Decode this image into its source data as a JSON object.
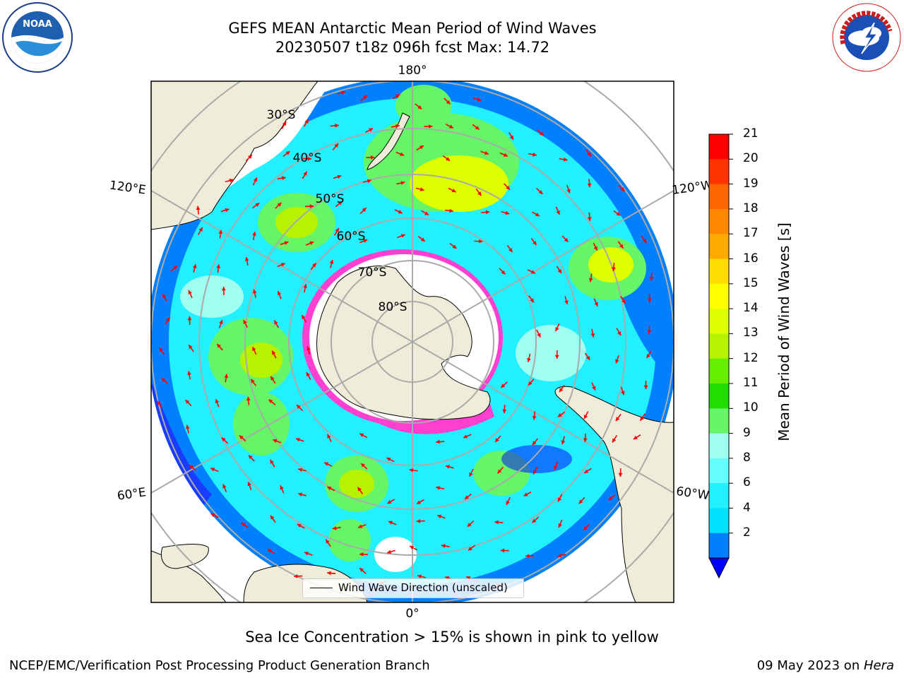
{
  "header": {
    "title_line1": "GEFS MEAN Antarctic Mean Period of Wind Waves",
    "title_line2": "20230507 t18z 096h fcst   Max: 14.72"
  },
  "logos": {
    "left": {
      "icon": "noaa-logo-icon",
      "text": "NOAA"
    },
    "right": {
      "icon": "nws-logo-icon",
      "text": "NATIONAL WEATHER SERVICE"
    }
  },
  "map": {
    "projection": "south-polar-stereographic",
    "longitude_labels": [
      "180°",
      "120°E",
      "120°W",
      "60°E",
      "60°W",
      "0°"
    ],
    "latitude_labels": [
      "30°S",
      "40°S",
      "50°S",
      "60°S",
      "70°S",
      "80°S"
    ],
    "colors": {
      "land": "#efedd9",
      "ocean_no_data": "#ffffff",
      "ice_edge": "#ff3fd0",
      "arrow": "#ff0000",
      "grid": "#aaaaaa"
    }
  },
  "colorbar": {
    "label": "Mean Period of Wind Waves [s]",
    "ticks": [
      "21",
      "20",
      "19",
      "18",
      "17",
      "16",
      "15",
      "14",
      "13",
      "12",
      "11",
      "10",
      "9",
      "8",
      "6",
      "4",
      "2"
    ],
    "colors": [
      "#ff0000",
      "#ff3300",
      "#ff6600",
      "#ff8800",
      "#ffaa00",
      "#ffdd00",
      "#ffff00",
      "#ddff00",
      "#b7f200",
      "#66ee00",
      "#22dd00",
      "#66f566",
      "#9ffff0",
      "#66ffff",
      "#22f0ff",
      "#00e0ff",
      "#0080ff"
    ],
    "under_color": "#0000ff"
  },
  "legend": {
    "label": "Wind Wave Direction (unscaled)"
  },
  "caption": "Sea Ice Concentration > 15% is shown in pink to yellow",
  "footer": {
    "left": "NCEP/EMC/Verification Post Processing Product Generation Branch",
    "right_prefix": "09 May 2023 on ",
    "right_machine": "Hera"
  }
}
